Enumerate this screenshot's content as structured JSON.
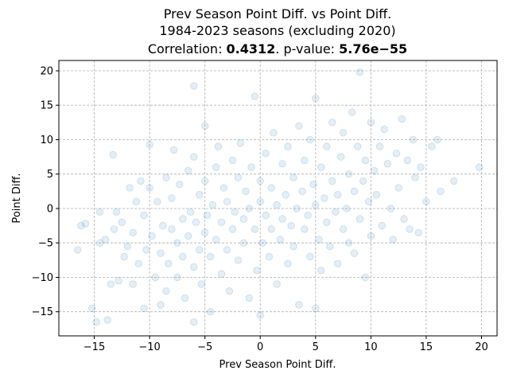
{
  "chart_data": {
    "type": "scatter",
    "title_line1": "Prev Season Point Diff. vs Point Diff.",
    "title_line2": "1984-2023 seasons (excluding 2020)",
    "title_line3_prefix": "Correlation: ",
    "correlation": "0.4312",
    "title_line3_mid": ". p-value: ",
    "p_value": "5.76e−55",
    "xlabel": "Prev Season Point Diff.",
    "ylabel": "Point Diff.",
    "xlim": [
      -18.2,
      21.4
    ],
    "ylim": [
      -18.5,
      21.5
    ],
    "xticks": [
      {
        "value": -15,
        "label": "−15"
      },
      {
        "value": -10,
        "label": "−10"
      },
      {
        "value": -5,
        "label": "−5"
      },
      {
        "value": 0,
        "label": "0"
      },
      {
        "value": 5,
        "label": "5"
      },
      {
        "value": 10,
        "label": "10"
      },
      {
        "value": 15,
        "label": "15"
      },
      {
        "value": 20,
        "label": "20"
      }
    ],
    "yticks": [
      {
        "value": -15,
        "label": "−15"
      },
      {
        "value": -10,
        "label": "−10"
      },
      {
        "value": -5,
        "label": "−5"
      },
      {
        "value": 0,
        "label": "0"
      },
      {
        "value": 5,
        "label": "5"
      },
      {
        "value": 10,
        "label": "10"
      },
      {
        "value": 15,
        "label": "15"
      },
      {
        "value": 20,
        "label": "20"
      }
    ],
    "grid": true,
    "point_color": "#1f77b4",
    "points": [
      [
        -16.5,
        -6
      ],
      [
        -16.2,
        -2.5
      ],
      [
        -15.8,
        -2.2
      ],
      [
        -15.2,
        -14.5
      ],
      [
        -14.8,
        -16.5
      ],
      [
        -14.5,
        -5
      ],
      [
        -14.5,
        -0.5
      ],
      [
        -14,
        -4.5
      ],
      [
        -13.8,
        -16.2
      ],
      [
        -13.5,
        -11
      ],
      [
        -13.3,
        7.8
      ],
      [
        -13.2,
        -3
      ],
      [
        -13,
        -0.5
      ],
      [
        -12.8,
        -10.5
      ],
      [
        -12.5,
        -2
      ],
      [
        -12.3,
        -7
      ],
      [
        -12,
        -5.5
      ],
      [
        -11.8,
        3
      ],
      [
        -11.5,
        -3.5
      ],
      [
        -11.5,
        -11
      ],
      [
        -11.2,
        1
      ],
      [
        -11,
        -8
      ],
      [
        -10.8,
        4
      ],
      [
        -10.5,
        -14.5
      ],
      [
        -10.5,
        -1
      ],
      [
        -10.3,
        -6
      ],
      [
        -10,
        9.3
      ],
      [
        -10,
        3
      ],
      [
        -9.8,
        -4
      ],
      [
        -9.5,
        -10
      ],
      [
        -9.3,
        1
      ],
      [
        -9,
        -14
      ],
      [
        -9,
        -6.5
      ],
      [
        -8.8,
        -2.5
      ],
      [
        -8.5,
        4.5
      ],
      [
        -8.5,
        -12
      ],
      [
        -8.3,
        -8
      ],
      [
        -8,
        -3
      ],
      [
        -8,
        1.5
      ],
      [
        -7.8,
        8.5
      ],
      [
        -7.5,
        -5
      ],
      [
        -7.5,
        -10
      ],
      [
        -7.3,
        3.5
      ],
      [
        -7,
        -1.5
      ],
      [
        -7,
        -7
      ],
      [
        -6.8,
        -13
      ],
      [
        -6.5,
        5.5
      ],
      [
        -6.5,
        -4
      ],
      [
        -6.3,
        -0.5
      ],
      [
        -6,
        -8.5
      ],
      [
        -6,
        17.8
      ],
      [
        -6,
        -16.5
      ],
      [
        -6,
        7.5
      ],
      [
        -5.8,
        -2
      ],
      [
        -5.5,
        -6
      ],
      [
        -5.5,
        2
      ],
      [
        -5.3,
        -11
      ],
      [
        -5,
        4
      ],
      [
        -5,
        -3.5
      ],
      [
        -5,
        12
      ],
      [
        -4.8,
        -1
      ],
      [
        -4.5,
        -15
      ],
      [
        -4.5,
        -7
      ],
      [
        -4.3,
        0.5
      ],
      [
        -4,
        6
      ],
      [
        -4,
        -4.5
      ],
      [
        -3.8,
        9
      ],
      [
        -3.5,
        -2
      ],
      [
        -3.5,
        -9.5
      ],
      [
        -3.3,
        3
      ],
      [
        -3,
        -6
      ],
      [
        -3,
        1
      ],
      [
        -2.8,
        -12
      ],
      [
        -2.5,
        7
      ],
      [
        -2.5,
        -3
      ],
      [
        -2.3,
        -0.5
      ],
      [
        -2,
        4.5
      ],
      [
        -2,
        -7.5
      ],
      [
        -1.8,
        9.5
      ],
      [
        -1.5,
        -1.5
      ],
      [
        -1.5,
        -5
      ],
      [
        -1.3,
        2.5
      ],
      [
        -1,
        -13
      ],
      [
        -1,
        0
      ],
      [
        -0.8,
        6
      ],
      [
        -0.5,
        -3
      ],
      [
        -0.5,
        16.3
      ],
      [
        -0.3,
        -9
      ],
      [
        0,
        1
      ],
      [
        0,
        -15.5
      ],
      [
        0,
        4
      ],
      [
        0.2,
        -5
      ],
      [
        0.5,
        8
      ],
      [
        0.5,
        -1
      ],
      [
        0.8,
        -7
      ],
      [
        1,
        3
      ],
      [
        1,
        -3
      ],
      [
        1.2,
        11
      ],
      [
        1.5,
        0.5
      ],
      [
        1.5,
        -11
      ],
      [
        1.8,
        -4.5
      ],
      [
        2,
        6.5
      ],
      [
        2,
        -1.5
      ],
      [
        2.3,
        2
      ],
      [
        2.5,
        -8
      ],
      [
        2.5,
        9
      ],
      [
        2.8,
        -2.5
      ],
      [
        3,
        4.5
      ],
      [
        3,
        -5.5
      ],
      [
        3.3,
        0
      ],
      [
        3.5,
        12
      ],
      [
        3.5,
        -14
      ],
      [
        3.8,
        2.5
      ],
      [
        4,
        -3
      ],
      [
        4,
        7
      ],
      [
        4.3,
        -1
      ],
      [
        4.5,
        10
      ],
      [
        4.5,
        -7
      ],
      [
        4.8,
        3.5
      ],
      [
        5,
        16
      ],
      [
        5,
        -14.5
      ],
      [
        5,
        0.5
      ],
      [
        5.3,
        -4.5
      ],
      [
        5.5,
        6
      ],
      [
        5.5,
        -9
      ],
      [
        5.8,
        1.5
      ],
      [
        6,
        -2
      ],
      [
        6,
        9
      ],
      [
        6.3,
        -5.5
      ],
      [
        6.5,
        4
      ],
      [
        6.5,
        12.5
      ],
      [
        6.8,
        -0.5
      ],
      [
        7,
        2
      ],
      [
        7,
        -8
      ],
      [
        7.3,
        7.5
      ],
      [
        7.5,
        -3
      ],
      [
        7.5,
        11
      ],
      [
        7.8,
        0
      ],
      [
        8,
        5
      ],
      [
        8,
        -5
      ],
      [
        8.3,
        14
      ],
      [
        8.5,
        2.5
      ],
      [
        8.5,
        -6.5
      ],
      [
        8.8,
        9
      ],
      [
        9,
        -1.5
      ],
      [
        9,
        19.8
      ],
      [
        9.3,
        4
      ],
      [
        9.5,
        -10
      ],
      [
        9.5,
        7
      ],
      [
        9.8,
        1
      ],
      [
        10,
        12.5
      ],
      [
        10,
        -4
      ],
      [
        10.3,
        5.5
      ],
      [
        10.5,
        2
      ],
      [
        10.8,
        9
      ],
      [
        11,
        -2.5
      ],
      [
        11.2,
        11.5
      ],
      [
        11.5,
        6.5
      ],
      [
        11.8,
        0
      ],
      [
        12,
        -4.5
      ],
      [
        12.3,
        8
      ],
      [
        12.5,
        3
      ],
      [
        12.8,
        13
      ],
      [
        13,
        -1.5
      ],
      [
        13.3,
        7
      ],
      [
        13.5,
        -3
      ],
      [
        13.8,
        10
      ],
      [
        14,
        4.5
      ],
      [
        14.3,
        -3.5
      ],
      [
        14.5,
        6
      ],
      [
        15,
        1
      ],
      [
        15.5,
        9
      ],
      [
        16,
        10
      ],
      [
        16.3,
        2.5
      ],
      [
        17.5,
        4
      ],
      [
        19.8,
        6
      ]
    ]
  }
}
